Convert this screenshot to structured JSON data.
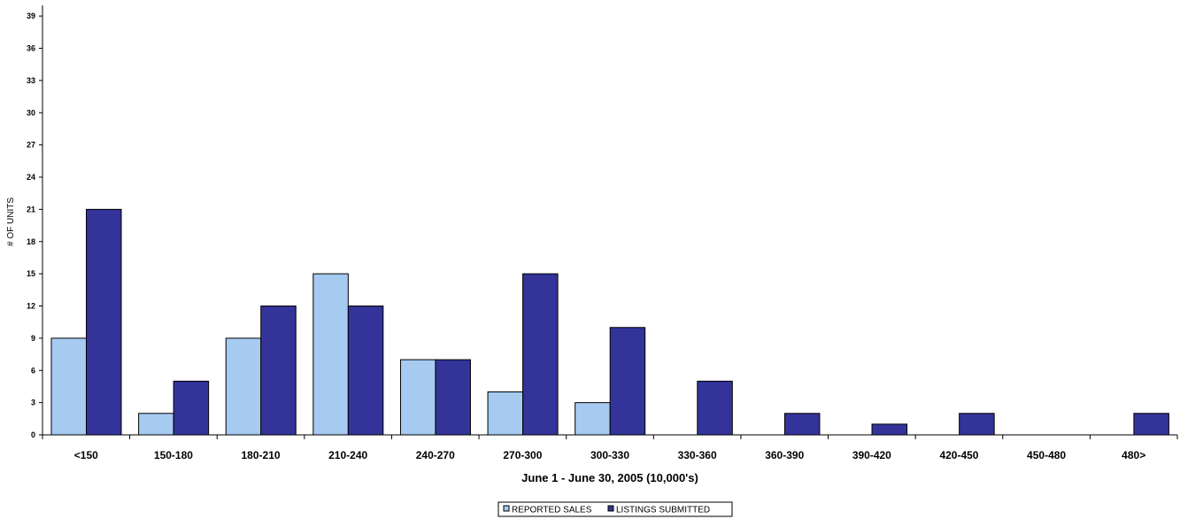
{
  "chart_data": {
    "type": "bar",
    "title": "",
    "xlabel": "June 1 - June 30, 2005 (10,000's)",
    "ylabel": "# OF UNITS",
    "ylim": [
      0,
      40
    ],
    "yticks": [
      0,
      3,
      6,
      9,
      12,
      15,
      18,
      21,
      24,
      27,
      30,
      33,
      36,
      39
    ],
    "categories": [
      "<150",
      "150-180",
      "180-210",
      "210-240",
      "240-270",
      "270-300",
      "300-330",
      "330-360",
      "360-390",
      "390-420",
      "420-450",
      "450-480",
      "480>"
    ],
    "series": [
      {
        "name": "REPORTED SALES",
        "color": "#a6caf0",
        "values": [
          9,
          2,
          9,
          15,
          7,
          4,
          3,
          0,
          0,
          0,
          0,
          0,
          0
        ]
      },
      {
        "name": "LISTINGS SUBMITTED",
        "color": "#333399",
        "values": [
          21,
          5,
          12,
          12,
          7,
          15,
          10,
          5,
          2,
          1,
          2,
          0,
          2
        ]
      }
    ],
    "legend_position": "bottom",
    "grid": false
  }
}
